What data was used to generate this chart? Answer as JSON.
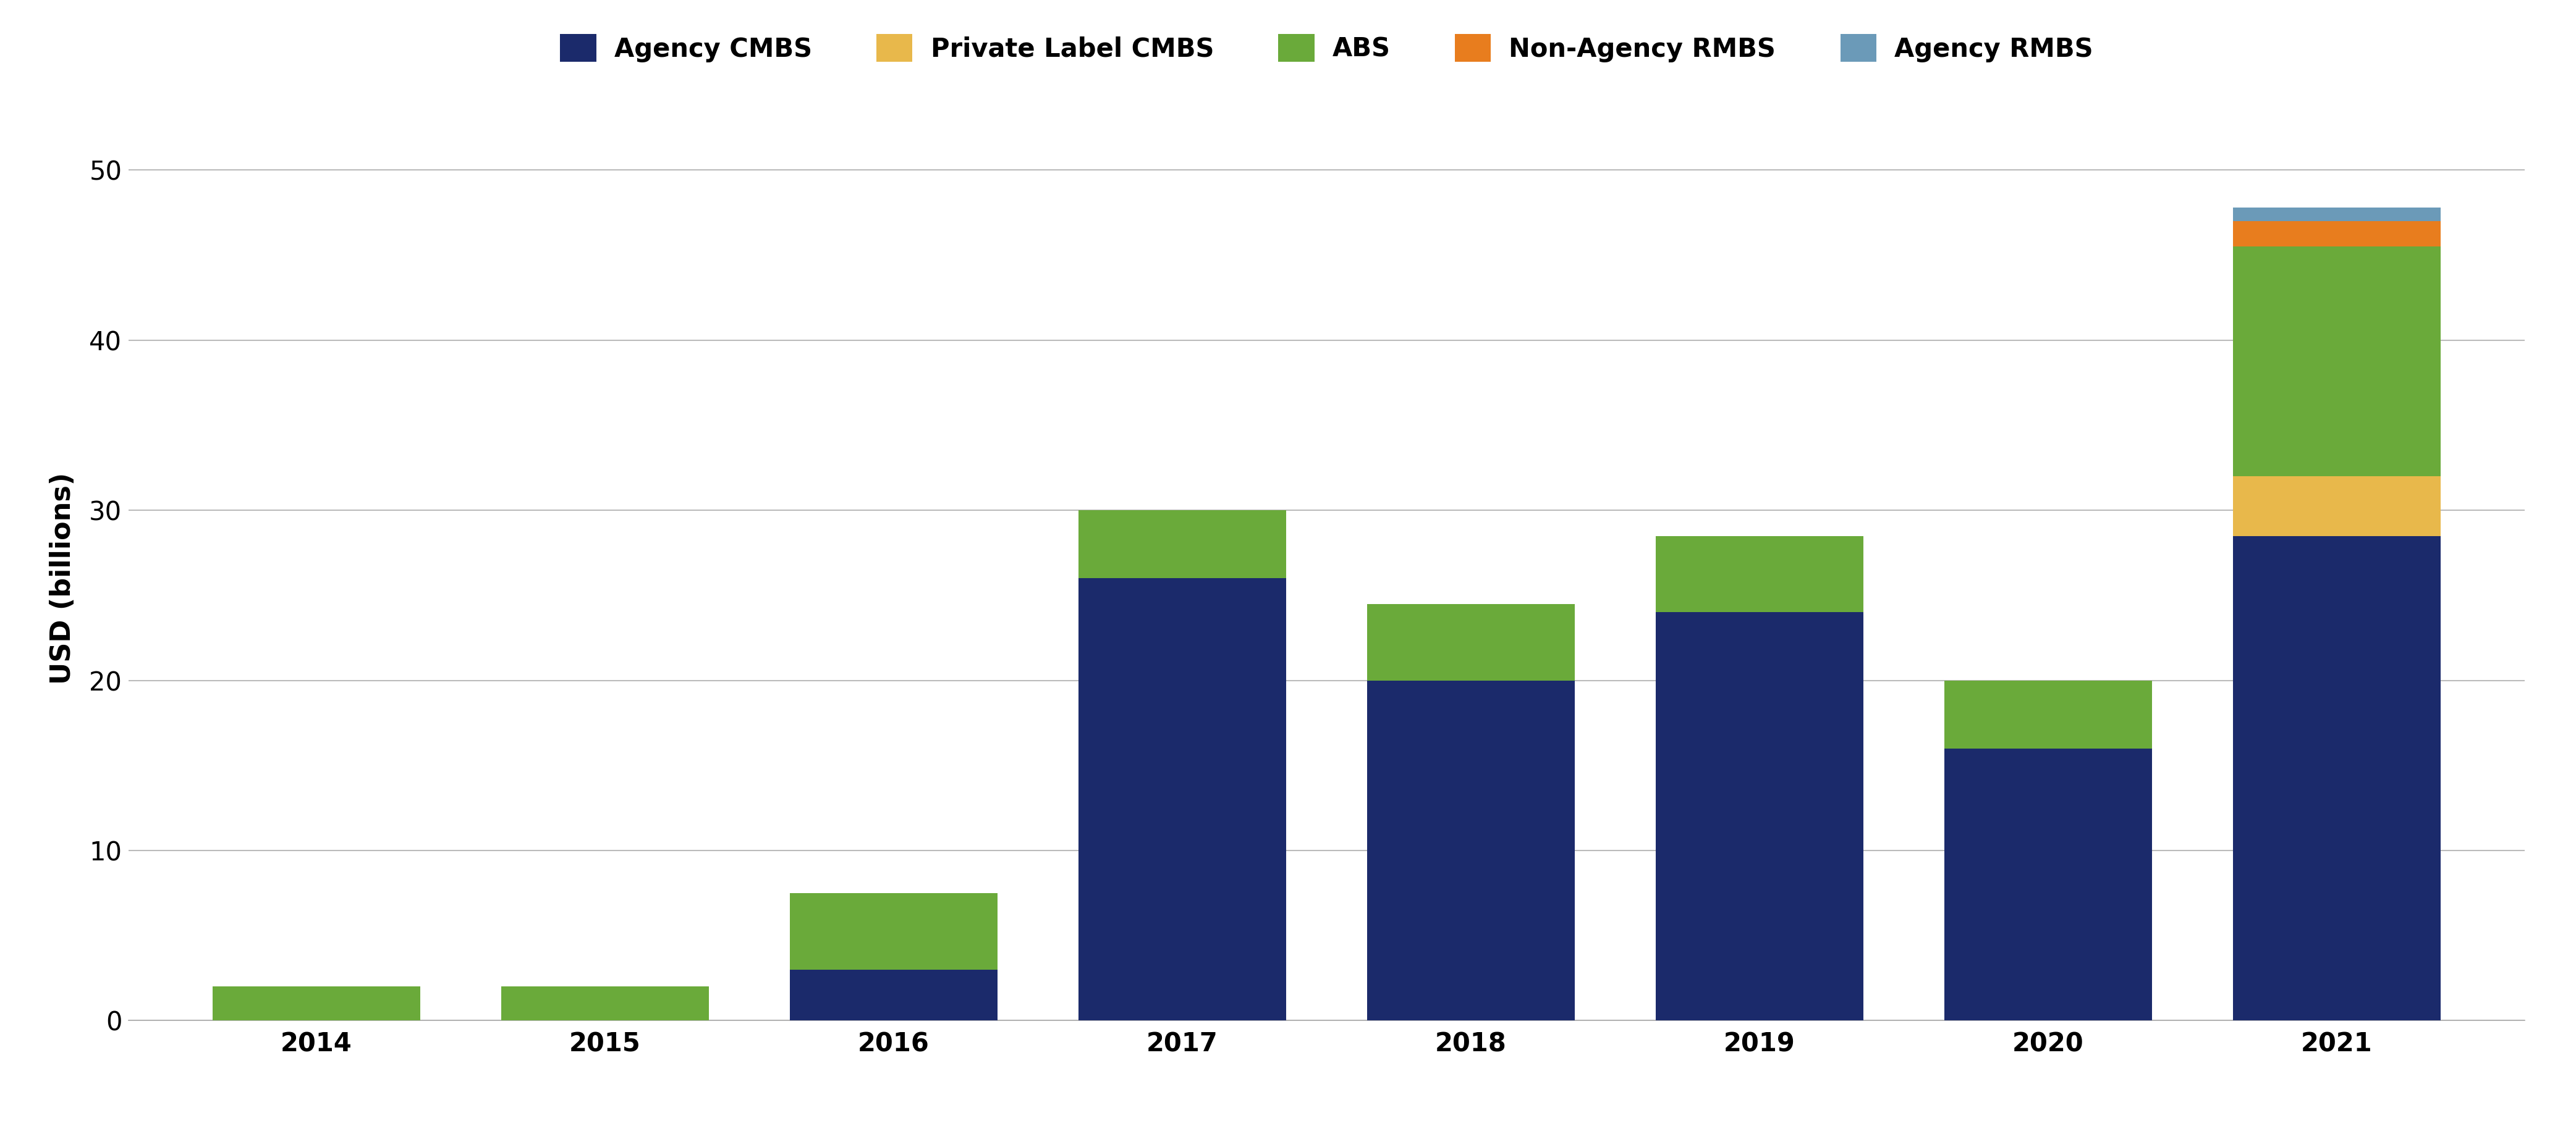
{
  "years": [
    "2014",
    "2015",
    "2016",
    "2017",
    "2018",
    "2019",
    "2020",
    "2021"
  ],
  "agency_cmbs": [
    0.0,
    0.0,
    3.0,
    26.0,
    20.0,
    24.0,
    16.0,
    28.5
  ],
  "private_label_cmbs": [
    0.0,
    0.0,
    0.0,
    0.0,
    0.0,
    0.0,
    0.0,
    3.5
  ],
  "abs": [
    2.0,
    2.0,
    4.5,
    4.0,
    4.5,
    4.5,
    4.0,
    13.5
  ],
  "non_agency_rmbs": [
    0.0,
    0.0,
    0.0,
    0.0,
    0.0,
    0.0,
    0.0,
    1.5
  ],
  "agency_rmbs": [
    0.0,
    0.0,
    0.0,
    0.0,
    0.0,
    0.0,
    0.0,
    0.8
  ],
  "colors": {
    "agency_cmbs": "#1b2a6b",
    "private_label_cmbs": "#e8b84b",
    "abs": "#6aaa3a",
    "non_agency_rmbs": "#e87d1e",
    "agency_rmbs": "#6b9ab8"
  },
  "labels": {
    "agency_cmbs": "Agency CMBS",
    "private_label_cmbs": "Private Label CMBS",
    "abs": "ABS",
    "non_agency_rmbs": "Non-Agency RMBS",
    "agency_rmbs": "Agency RMBS"
  },
  "ylabel": "USD (billions)",
  "ylim": [
    0,
    52
  ],
  "yticks": [
    0,
    10,
    20,
    30,
    40,
    50
  ],
  "bar_width": 0.72,
  "background_color": "#ffffff",
  "grid_color": "#bbbbbb",
  "tick_fontsize": 30,
  "label_fontsize": 32,
  "legend_fontsize": 30
}
